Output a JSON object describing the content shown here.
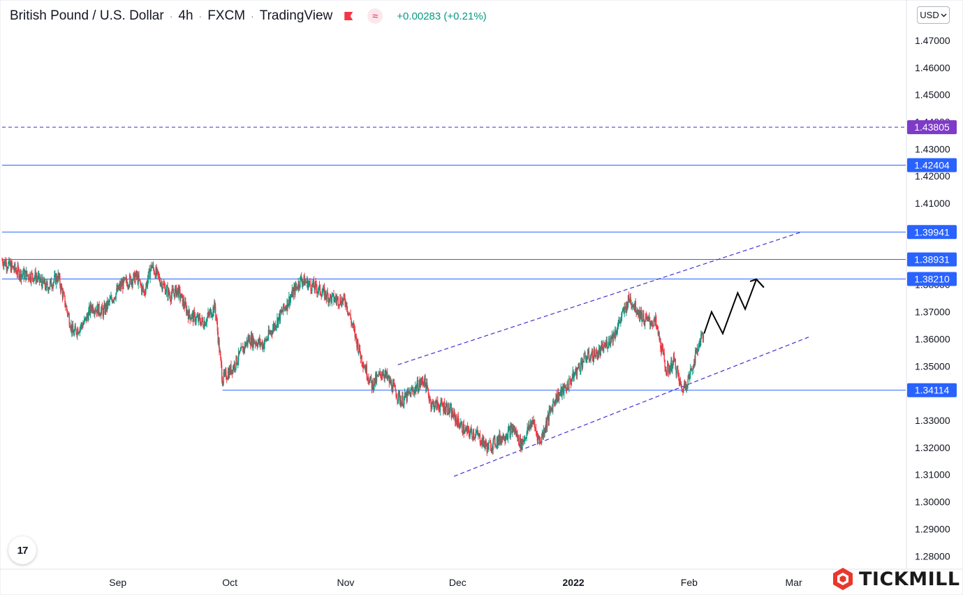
{
  "header": {
    "symbol": "British Pound / U.S. Dollar",
    "interval": "4h",
    "exchange": "FXCM",
    "source": "TradingView",
    "flag_icon": "flag-icon",
    "wave_icon": "wave-icon",
    "change": "+0.00283 (+0.21%)",
    "change_color": "#089981"
  },
  "currency_selector": {
    "label": "USD",
    "icon": "chevron-down-icon"
  },
  "brand": {
    "name": "TICKMILL",
    "color": "#e8372c"
  },
  "tv_logo": {
    "text": "17"
  },
  "colors": {
    "up": "#089981",
    "down": "#f23645",
    "level_line": "#2962ff",
    "channel": "#3f2fd6",
    "label_bg_blue": "#2962ff",
    "label_bg_purple": "#7e3ac8",
    "projection": "#000000"
  },
  "chart_data": {
    "type": "candlestick",
    "title": "British Pound / U.S. Dollar · 4h · FXCM · TradingView",
    "y_axis": {
      "ticks": [
        "1.47000",
        "1.46000",
        "1.45000",
        "1.44000",
        "1.43000",
        "1.42000",
        "1.41000",
        "1.40000",
        "1.39000",
        "1.38000",
        "1.37000",
        "1.36000",
        "1.35000",
        "1.34000",
        "1.33000",
        "1.32000",
        "1.31000",
        "1.30000",
        "1.29000",
        "1.28000"
      ],
      "ylim": [
        1.2752,
        1.4849
      ]
    },
    "x_axis": {
      "date_range": [
        "2021-08-01",
        "2022-03-31"
      ],
      "ticks": [
        {
          "label": "Sep",
          "date": "2021-09-01"
        },
        {
          "label": "Oct",
          "date": "2021-10-01"
        },
        {
          "label": "Nov",
          "date": "2021-11-01"
        },
        {
          "label": "Dec",
          "date": "2021-12-01"
        },
        {
          "label": "2022",
          "date": "2022-01-01",
          "bold": true
        },
        {
          "label": "Feb",
          "date": "2022-02-01"
        },
        {
          "label": "Mar",
          "date": "2022-03-01"
        }
      ]
    },
    "price_path": [
      [
        "2021-08-01",
        1.389
      ],
      [
        "2021-08-06",
        1.384
      ],
      [
        "2021-08-10",
        1.383
      ],
      [
        "2021-08-13",
        1.379
      ],
      [
        "2021-08-16",
        1.383
      ],
      [
        "2021-08-20",
        1.362
      ],
      [
        "2021-08-23",
        1.366
      ],
      [
        "2021-08-25",
        1.372
      ],
      [
        "2021-08-28",
        1.37
      ],
      [
        "2021-09-02",
        1.38
      ],
      [
        "2021-09-06",
        1.383
      ],
      [
        "2021-09-08",
        1.377
      ],
      [
        "2021-09-10",
        1.387
      ],
      [
        "2021-09-13",
        1.38
      ],
      [
        "2021-09-15",
        1.376
      ],
      [
        "2021-09-17",
        1.378
      ],
      [
        "2021-09-20",
        1.369
      ],
      [
        "2021-09-24",
        1.366
      ],
      [
        "2021-09-27",
        1.372
      ],
      [
        "2021-09-29",
        1.345
      ],
      [
        "2021-10-02",
        1.35
      ],
      [
        "2021-10-06",
        1.36
      ],
      [
        "2021-10-10",
        1.358
      ],
      [
        "2021-10-15",
        1.37
      ],
      [
        "2021-10-20",
        1.382
      ],
      [
        "2021-10-25",
        1.378
      ],
      [
        "2021-10-28",
        1.375
      ],
      [
        "2021-11-01",
        1.374
      ],
      [
        "2021-11-05",
        1.354
      ],
      [
        "2021-11-08",
        1.343
      ],
      [
        "2021-11-11",
        1.348
      ],
      [
        "2021-11-16",
        1.337
      ],
      [
        "2021-11-19",
        1.341
      ],
      [
        "2021-11-22",
        1.345
      ],
      [
        "2021-11-24",
        1.336
      ],
      [
        "2021-11-28",
        1.335
      ],
      [
        "2021-12-03",
        1.326
      ],
      [
        "2021-12-06",
        1.325
      ],
      [
        "2021-12-09",
        1.32
      ],
      [
        "2021-12-12",
        1.323
      ],
      [
        "2021-12-16",
        1.327
      ],
      [
        "2021-12-18",
        1.321
      ],
      [
        "2021-12-21",
        1.33
      ],
      [
        "2021-12-23",
        1.322
      ],
      [
        "2021-12-27",
        1.338
      ],
      [
        "2021-12-30",
        1.342
      ],
      [
        "2022-01-04",
        1.353
      ],
      [
        "2022-01-08",
        1.355
      ],
      [
        "2022-01-12",
        1.362
      ],
      [
        "2022-01-16",
        1.375
      ],
      [
        "2022-01-20",
        1.367
      ],
      [
        "2022-01-23",
        1.366
      ],
      [
        "2022-01-26",
        1.348
      ],
      [
        "2022-01-28",
        1.352
      ],
      [
        "2022-01-30",
        1.341
      ],
      [
        "2022-02-01",
        1.346
      ],
      [
        "2022-02-04",
        1.36
      ],
      [
        "2022-02-05",
        1.363
      ]
    ],
    "projection_path": [
      [
        "2022-02-05",
        1.362
      ],
      [
        "2022-02-07",
        1.37
      ],
      [
        "2022-02-10",
        1.362
      ],
      [
        "2022-02-14",
        1.377
      ],
      [
        "2022-02-16",
        1.371
      ],
      [
        "2022-02-19",
        1.382
      ],
      [
        "2022-02-21",
        1.379
      ]
    ],
    "levels": [
      {
        "label": "1.43805",
        "value": 1.43805,
        "style": "dashed",
        "color": "#3f2fd6",
        "label_bg": "#7e3ac8",
        "start": "2021-08-01"
      },
      {
        "label": "1.42404",
        "value": 1.42404,
        "style": "solid",
        "color": "#2962ff",
        "label_bg": "#2962ff",
        "start": "2021-08-01"
      },
      {
        "label": "1.39941",
        "value": 1.39941,
        "style": "solid",
        "color": "#2962ff",
        "label_bg": "#2962ff",
        "start": "2021-08-01"
      },
      {
        "label": "1.38931",
        "value": 1.38931,
        "style": "solid",
        "color": "#2962ff",
        "label_bg": "#2962ff",
        "start": "2021-08-01"
      },
      {
        "label": "1.38210",
        "value": 1.3821,
        "style": "solid",
        "color": "#2962ff",
        "label_bg": "#2962ff",
        "start": "2021-08-01"
      },
      {
        "label": "1.34114",
        "value": 1.34114,
        "style": "solid",
        "color": "#2962ff",
        "label_bg": "#2962ff",
        "start": "2021-09-29"
      }
    ],
    "channel_lines": [
      {
        "from": [
          "2021-11-15",
          1.3505
        ],
        "to": [
          "2022-03-03",
          1.3994
        ]
      },
      {
        "from": [
          "2021-11-30",
          1.3094
        ],
        "to": [
          "2022-03-05",
          1.3607
        ]
      }
    ],
    "grid": false,
    "legend": "none"
  }
}
